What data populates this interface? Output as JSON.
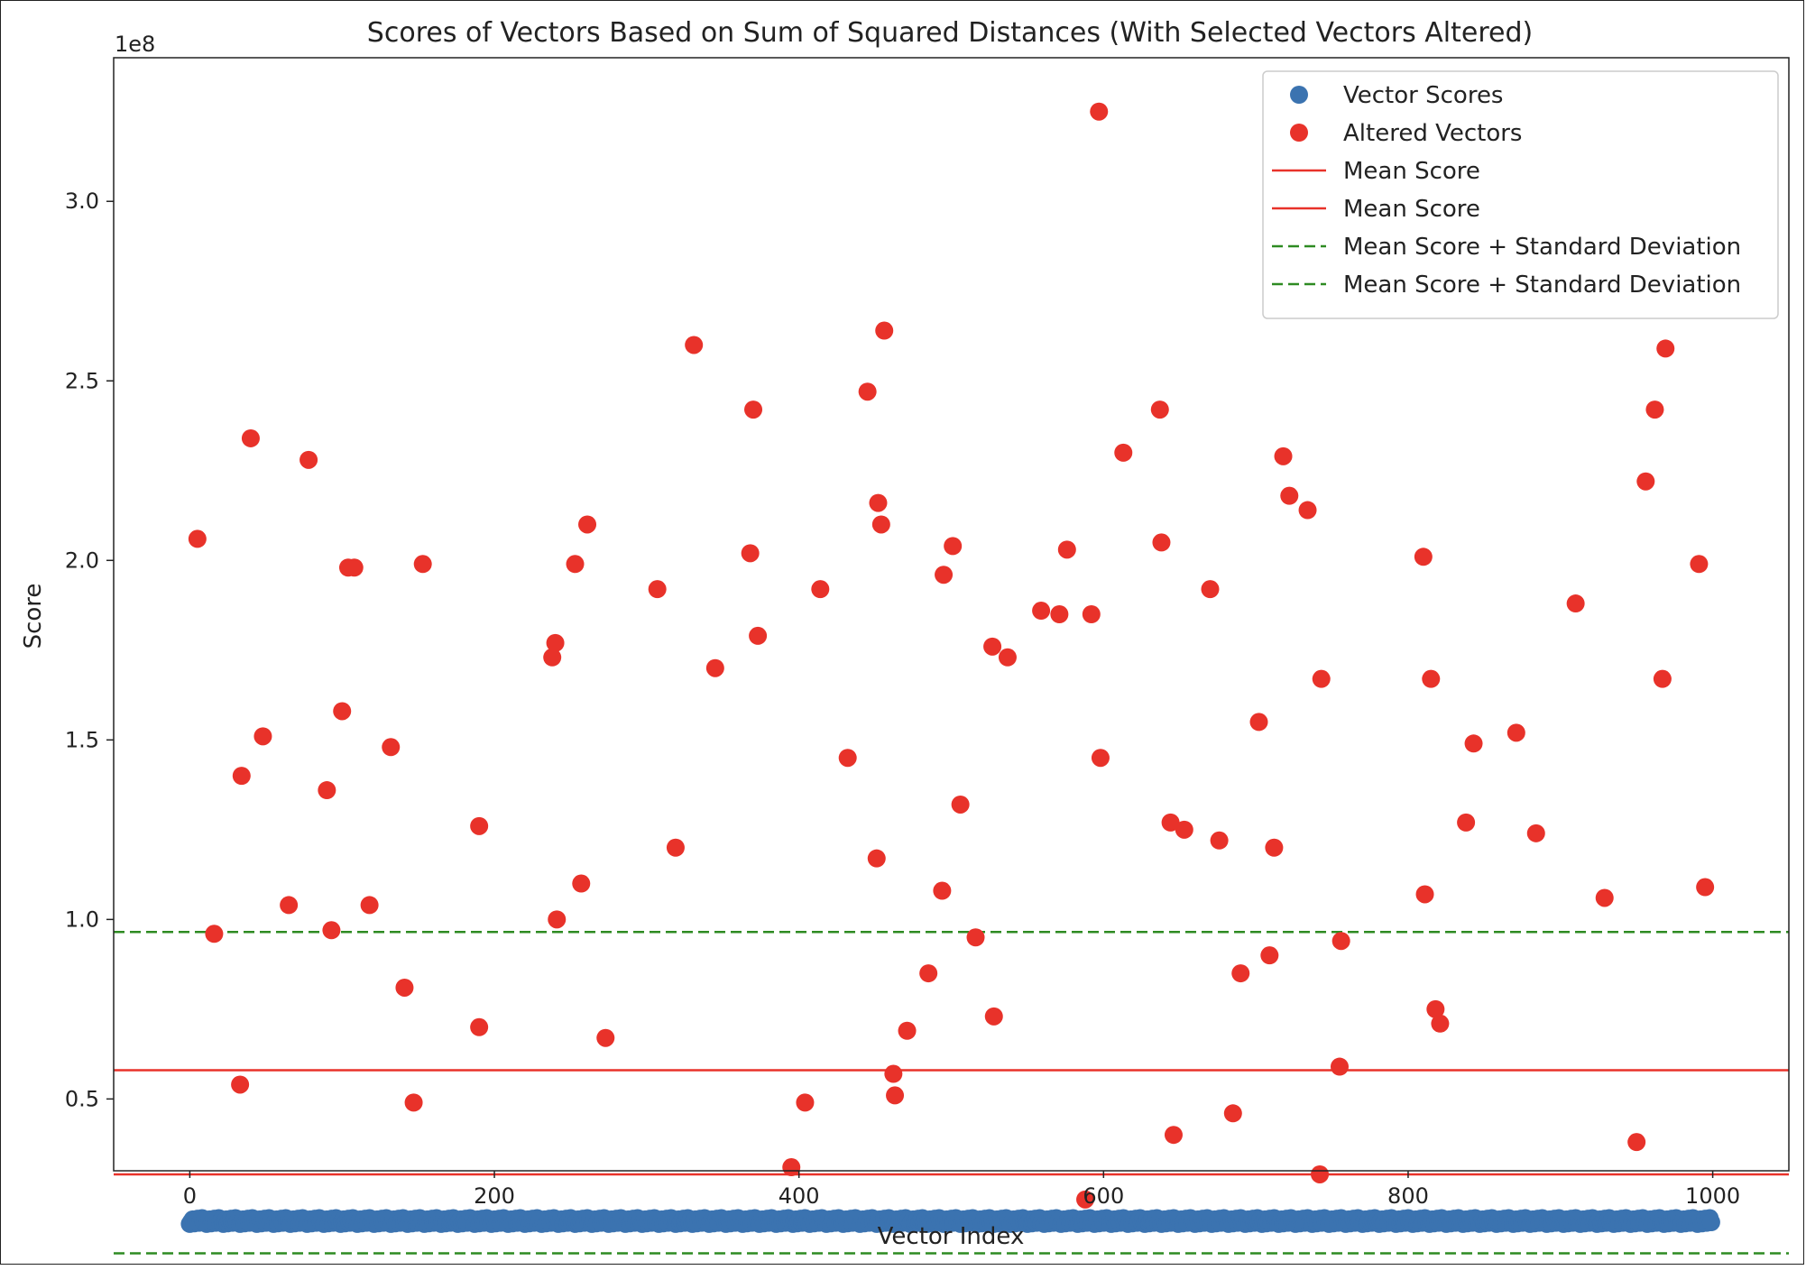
{
  "chart_data": {
    "type": "scatter",
    "title": "Scores of Vectors Based on Sum of Squared Distances (With Selected Vectors Altered)",
    "xlabel": "Vector Index",
    "ylabel": "Score",
    "y_offset_label": "1e8",
    "xlim": [
      -50,
      1050
    ],
    "ylim": [
      30000000.0,
      340000000.0
    ],
    "x_ticks": [
      0,
      200,
      400,
      600,
      800,
      1000
    ],
    "x_tick_labels": [
      "0",
      "200",
      "400",
      "600",
      "800",
      "1000"
    ],
    "y_ticks": [
      50000000.0,
      100000000.0,
      150000000.0,
      200000000.0,
      250000000.0,
      300000000.0
    ],
    "y_tick_labels": [
      "0.5",
      "1.0",
      "1.5",
      "2.0",
      "2.5",
      "3.0"
    ],
    "grid": false,
    "legend_position": "top-right",
    "legend": [
      {
        "label": "Vector Scores",
        "kind": "marker",
        "color": "#3b73b0"
      },
      {
        "label": "Altered Vectors",
        "kind": "marker",
        "color": "#e8322a"
      },
      {
        "label": "Mean Score",
        "kind": "line",
        "color": "#e8322a"
      },
      {
        "label": "Mean Score",
        "kind": "line",
        "color": "#e8322a"
      },
      {
        "label": "Mean Score + Standard Deviation",
        "kind": "dashed",
        "color": "#2e8b22"
      },
      {
        "label": "Mean Score + Standard Deviation",
        "kind": "dashed",
        "color": "#2e8b22"
      }
    ],
    "series": [
      {
        "name": "Vector Scores",
        "color": "#3b73b0",
        "x_start": 0,
        "x_end": 999,
        "value_approx": 16000000
      },
      {
        "name": "Altered Vectors",
        "color": "#e8322a",
        "points": [
          [
            5,
            206000000
          ],
          [
            16,
            96000000
          ],
          [
            33,
            54000000
          ],
          [
            34,
            140000000
          ],
          [
            40,
            234000000
          ],
          [
            48,
            151000000
          ],
          [
            65,
            104000000
          ],
          [
            78,
            228000000
          ],
          [
            90,
            136000000
          ],
          [
            93,
            97000000
          ],
          [
            100,
            158000000
          ],
          [
            104,
            198000000
          ],
          [
            108,
            198000000
          ],
          [
            118,
            104000000
          ],
          [
            132,
            148000000
          ],
          [
            141,
            81000000
          ],
          [
            147,
            49000000
          ],
          [
            153,
            199000000
          ],
          [
            190,
            70000000
          ],
          [
            190,
            126000000
          ],
          [
            238,
            173000000
          ],
          [
            240,
            177000000
          ],
          [
            241,
            100000000
          ],
          [
            253,
            199000000
          ],
          [
            257,
            110000000
          ],
          [
            261,
            210000000
          ],
          [
            273,
            67000000
          ],
          [
            307,
            192000000
          ],
          [
            319,
            120000000
          ],
          [
            331,
            260000000
          ],
          [
            345,
            170000000
          ],
          [
            368,
            202000000
          ],
          [
            370,
            242000000
          ],
          [
            373,
            179000000
          ],
          [
            395,
            31000000
          ],
          [
            404,
            49000000
          ],
          [
            414,
            192000000
          ],
          [
            432,
            145000000
          ],
          [
            445,
            247000000
          ],
          [
            451,
            117000000
          ],
          [
            452,
            216000000
          ],
          [
            454,
            210000000
          ],
          [
            456,
            264000000
          ],
          [
            462,
            57000000
          ],
          [
            463,
            51000000
          ],
          [
            471,
            69000000
          ],
          [
            485,
            85000000
          ],
          [
            494,
            108000000
          ],
          [
            495,
            196000000
          ],
          [
            501,
            204000000
          ],
          [
            506,
            132000000
          ],
          [
            516,
            95000000
          ],
          [
            527,
            176000000
          ],
          [
            528,
            73000000
          ],
          [
            537,
            173000000
          ],
          [
            559,
            186000000
          ],
          [
            571,
            185000000
          ],
          [
            576,
            203000000
          ],
          [
            588,
            22000000
          ],
          [
            592,
            185000000
          ],
          [
            597,
            325000000
          ],
          [
            598,
            145000000
          ],
          [
            613,
            230000000
          ],
          [
            637,
            242000000
          ],
          [
            638,
            205000000
          ],
          [
            644,
            127000000
          ],
          [
            646,
            40000000
          ],
          [
            653,
            125000000
          ],
          [
            670,
            192000000
          ],
          [
            676,
            122000000
          ],
          [
            685,
            46000000
          ],
          [
            690,
            85000000
          ],
          [
            702,
            155000000
          ],
          [
            709,
            90000000
          ],
          [
            712,
            120000000
          ],
          [
            718,
            229000000
          ],
          [
            722,
            218000000
          ],
          [
            734,
            214000000
          ],
          [
            742,
            29000000
          ],
          [
            743,
            167000000
          ],
          [
            755,
            59000000
          ],
          [
            756,
            94000000
          ],
          [
            810,
            201000000
          ],
          [
            811,
            107000000
          ],
          [
            815,
            167000000
          ],
          [
            818,
            75000000
          ],
          [
            821,
            71000000
          ],
          [
            838,
            127000000
          ],
          [
            843,
            149000000
          ],
          [
            871,
            152000000
          ],
          [
            884,
            124000000
          ],
          [
            910,
            188000000
          ],
          [
            929,
            106000000
          ],
          [
            950,
            38000000
          ],
          [
            956,
            222000000
          ],
          [
            962,
            242000000
          ],
          [
            967,
            167000000
          ],
          [
            969,
            259000000
          ],
          [
            991,
            199000000
          ],
          [
            995,
            109000000
          ]
        ]
      }
    ],
    "hlines": [
      {
        "name": "Mean Score",
        "y": 58000000,
        "color": "#e8322a",
        "style": "solid"
      },
      {
        "name": "Mean Score",
        "y": 29000000,
        "color": "#e8322a",
        "style": "solid"
      },
      {
        "name": "Mean Score + Standard Deviation",
        "y": 96500000,
        "color": "#2e8b22",
        "style": "dashed"
      },
      {
        "name": "Mean Score + Standard Deviation",
        "y": 7000000,
        "color": "#2e8b22",
        "style": "dashed"
      }
    ]
  }
}
